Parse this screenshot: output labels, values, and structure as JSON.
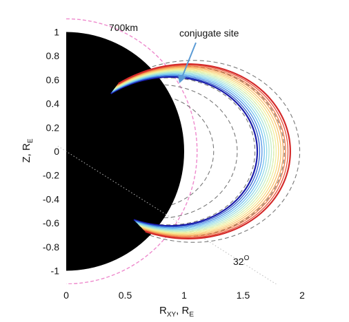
{
  "chart_data": {
    "type": "line",
    "title": "",
    "xlabel": {
      "main": "R",
      "sub": "XY",
      "rest": ", R",
      "sub2": "E"
    },
    "ylabel": {
      "main": "Z, R",
      "sub": "E"
    },
    "xlim": [
      0,
      2
    ],
    "ylim": [
      -1.05,
      1.05
    ],
    "x_ticks": [
      0,
      0.5,
      1,
      1.5,
      2
    ],
    "x_tick_labels": [
      "0",
      "0.5",
      "1",
      "1.5",
      "2"
    ],
    "y_ticks": [
      1,
      0.8,
      0.6,
      0.4,
      0.2,
      0,
      -0.2,
      -0.4,
      -0.6,
      -0.8,
      -1
    ],
    "y_tick_labels": [
      "1",
      "0.8",
      "0.6",
      "0.4",
      "0.2",
      "0",
      "-0.2",
      "-0.4",
      "-0.6",
      "-0.8",
      "-1"
    ],
    "earth": {
      "radius": 1,
      "color": "#000000"
    },
    "altitude_circle": {
      "label": "700km",
      "radius": 1.11,
      "color": "#ee88cc"
    },
    "dipole_field_lines": {
      "L_values": [
        1.25,
        1.45,
        1.6,
        1.76,
        1.85,
        1.98
      ],
      "color": "#777777",
      "style": "dashed"
    },
    "flux_tube": {
      "L_values": [
        1.62,
        1.64,
        1.66,
        1.68,
        1.7,
        1.72,
        1.74,
        1.76,
        1.78,
        1.8,
        1.82,
        1.84,
        1.86,
        1.88,
        1.9
      ],
      "colors": [
        "#1a1aa8",
        "#2f5fd0",
        "#4f93e6",
        "#6fc0ef",
        "#8fd8e8",
        "#a8e4d8",
        "#c4eec4",
        "#def3ae",
        "#f1ee9a",
        "#f8da82",
        "#f9c26c",
        "#f6a35a",
        "#ef7c48",
        "#e4533a",
        "#d42a2a"
      ],
      "lat_min_deg": -45,
      "lat_max_deg": 52
    },
    "reference_lines": [
      {
        "label": "32°",
        "angle_deg": 32,
        "color": "#bbbbbb",
        "style": "dotted"
      }
    ],
    "annotations": {
      "conjugate_site": {
        "label": "conjugate site",
        "arrow_color": "#5b9bd5"
      },
      "altitude_label": "700km",
      "angle_label_main": "32",
      "angle_label_sup": "O"
    }
  }
}
